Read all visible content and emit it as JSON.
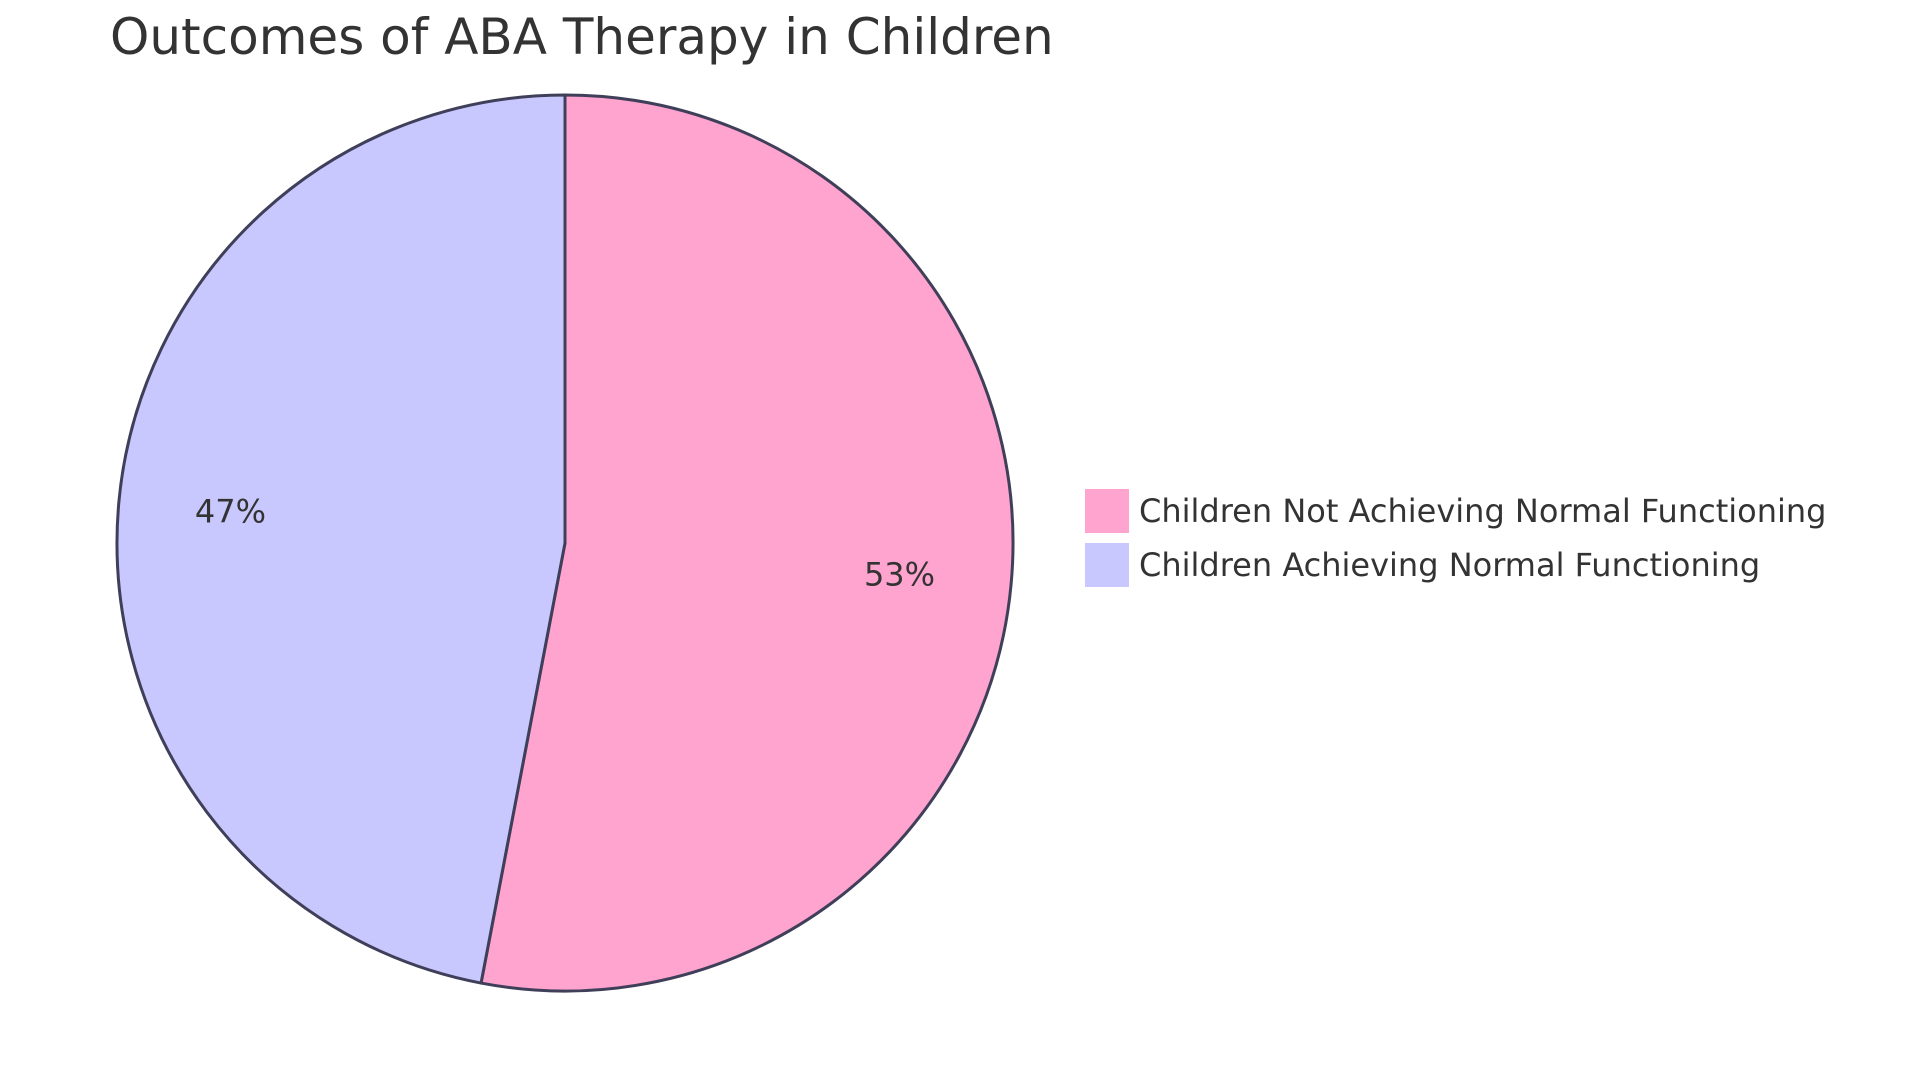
{
  "chart_data": {
    "type": "pie",
    "title": "Outcomes of ABA Therapy in Children",
    "slices": [
      {
        "label": "Children Not Achieving Normal Functioning",
        "value": 53,
        "display": "53%",
        "color": "#ffa3cf"
      },
      {
        "label": "Children Achieving Normal Functioning",
        "value": 47,
        "display": "47%",
        "color": "#c8c8ff"
      }
    ],
    "legend_position": "right",
    "stroke_color": "#3f3f5a"
  }
}
